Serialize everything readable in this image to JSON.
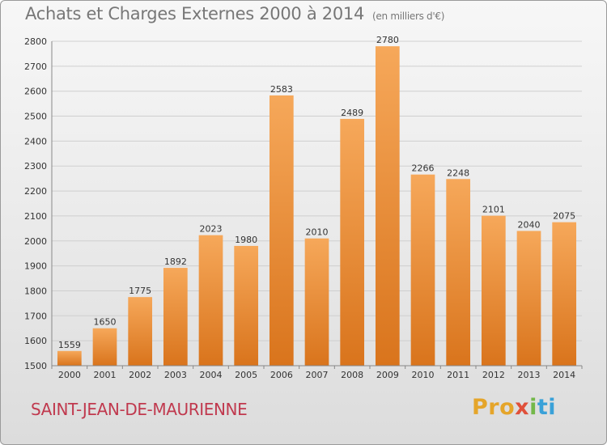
{
  "header": {
    "title": "Achats et Charges Externes 2000 à 2014",
    "unit": "(en milliers d'€)"
  },
  "footer": {
    "commune": "SAINT-JEAN-DE-MAURIENNE",
    "brand": {
      "p1": "Pro",
      "p2": "x",
      "p3": "i",
      "p4": "ti"
    }
  },
  "colors": {
    "bar_top": "#f6a85a",
    "bar_bottom": "#d9741c",
    "grid": "#cfcfcf",
    "axis": "#888888"
  },
  "chart_data": {
    "type": "bar",
    "title": "Achats et Charges Externes 2000 à 2014",
    "subtitle": "(en milliers d'€)",
    "xlabel": "",
    "ylabel": "",
    "categories": [
      "2000",
      "2001",
      "2002",
      "2003",
      "2004",
      "2005",
      "2006",
      "2007",
      "2008",
      "2009",
      "2010",
      "2011",
      "2012",
      "2013",
      "2014"
    ],
    "values": [
      1559,
      1650,
      1775,
      1892,
      2023,
      1980,
      2583,
      2010,
      2489,
      2780,
      2266,
      2248,
      2101,
      2040,
      2075
    ],
    "ylim": [
      1500,
      2800
    ],
    "yticks": [
      1500,
      1600,
      1700,
      1800,
      1900,
      2000,
      2100,
      2200,
      2300,
      2400,
      2500,
      2600,
      2700,
      2800
    ],
    "grid": true,
    "legend": "none"
  }
}
